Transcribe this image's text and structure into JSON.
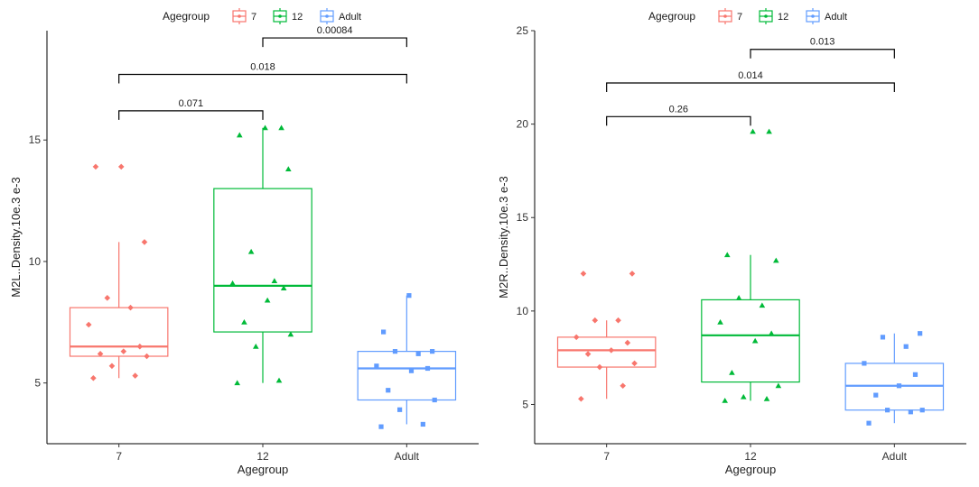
{
  "legend": {
    "title": "Agegroup",
    "entries": [
      {
        "label": "7",
        "color": "#F8766D"
      },
      {
        "label": "12",
        "color": "#00BA38"
      },
      {
        "label": "Adult",
        "color": "#619CFF"
      }
    ]
  },
  "chart_data": [
    {
      "type": "box",
      "title": "",
      "xlabel": "Agegroup",
      "ylabel": "M2L..Density.10e.3 e-3",
      "categories": [
        "7",
        "12",
        "Adult"
      ],
      "ylim": [
        2.5,
        19.5
      ],
      "yticks": [
        5,
        10,
        15
      ],
      "boxes": [
        {
          "group": "7",
          "whisker_low": 5.2,
          "q1": 6.1,
          "median": 6.5,
          "q3": 8.1,
          "whisker_high": 10.8,
          "points": [
            5.2,
            5.3,
            5.7,
            6.1,
            6.2,
            6.3,
            6.5,
            7.4,
            8.1,
            8.5,
            10.8,
            13.9,
            13.9
          ]
        },
        {
          "group": "12",
          "whisker_low": 5.0,
          "q1": 7.1,
          "median": 9.0,
          "q3": 13.0,
          "whisker_high": 15.5,
          "points": [
            5.0,
            5.1,
            6.5,
            7.0,
            7.5,
            8.4,
            8.9,
            9.1,
            9.2,
            10.4,
            13.8,
            15.2,
            15.5,
            15.5
          ]
        },
        {
          "group": "Adult",
          "whisker_low": 3.3,
          "q1": 4.3,
          "median": 5.6,
          "q3": 6.3,
          "whisker_high": 8.6,
          "points": [
            3.2,
            3.3,
            3.9,
            4.3,
            4.7,
            5.5,
            5.6,
            5.7,
            6.2,
            6.3,
            6.3,
            7.1,
            8.6
          ]
        }
      ],
      "comparisons": [
        {
          "from": "7",
          "to": "12",
          "y": 16.2,
          "label": "0.071"
        },
        {
          "from": "7",
          "to": "Adult",
          "y": 17.7,
          "label": "0.018"
        },
        {
          "from": "12",
          "to": "Adult",
          "y": 19.2,
          "label": "0.00084"
        }
      ]
    },
    {
      "type": "box",
      "title": "",
      "xlabel": "Agegroup",
      "ylabel": "M2R..Density.10e.3 e-3",
      "categories": [
        "7",
        "12",
        "Adult"
      ],
      "ylim": [
        2.9,
        25.0
      ],
      "yticks": [
        5,
        10,
        15,
        20,
        25
      ],
      "boxes": [
        {
          "group": "7",
          "whisker_low": 5.3,
          "q1": 7.0,
          "median": 7.9,
          "q3": 8.6,
          "whisker_high": 9.5,
          "points": [
            5.3,
            6.0,
            7.0,
            7.2,
            7.7,
            7.9,
            8.3,
            8.6,
            9.5,
            9.5,
            12.0,
            12.0
          ]
        },
        {
          "group": "12",
          "whisker_low": 5.2,
          "q1": 6.2,
          "median": 8.7,
          "q3": 10.6,
          "whisker_high": 13.0,
          "points": [
            5.2,
            5.3,
            5.4,
            6.0,
            6.7,
            8.4,
            8.8,
            9.4,
            10.3,
            10.7,
            12.7,
            13.0,
            19.6,
            19.6
          ]
        },
        {
          "group": "Adult",
          "whisker_low": 4.0,
          "q1": 4.7,
          "median": 6.0,
          "q3": 7.2,
          "whisker_high": 8.8,
          "points": [
            4.0,
            4.6,
            4.7,
            4.7,
            5.5,
            6.0,
            6.6,
            7.2,
            8.1,
            8.6,
            8.8
          ]
        }
      ],
      "comparisons": [
        {
          "from": "7",
          "to": "12",
          "y": 20.4,
          "label": "0.26"
        },
        {
          "from": "7",
          "to": "Adult",
          "y": 22.2,
          "label": "0.014"
        },
        {
          "from": "12",
          "to": "Adult",
          "y": 24.0,
          "label": "0.013"
        }
      ]
    }
  ]
}
